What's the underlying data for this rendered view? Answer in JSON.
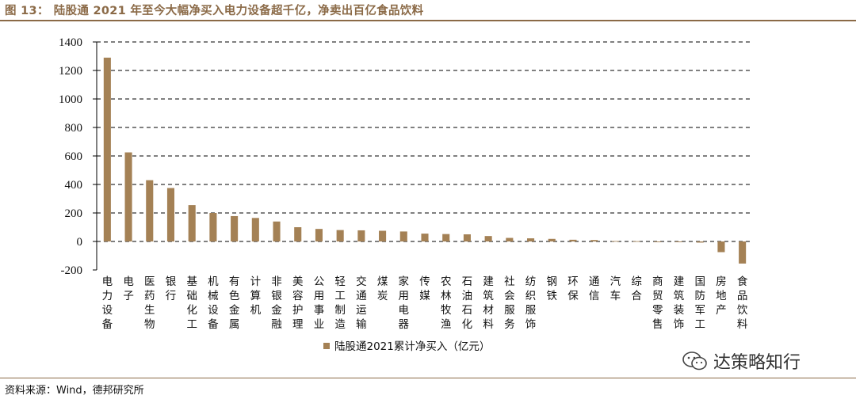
{
  "header": {
    "fig_label": "图 13：",
    "title": "陆股通 2021 年至今大幅净买入电力设备超千亿，净卖出百亿食品饮料"
  },
  "footer": {
    "source": "资料来源：Wind，德邦研究所",
    "watermark": "达策略知行"
  },
  "colors": {
    "bar": "#a48155",
    "accent": "#8b6a47",
    "grid": "#000000"
  },
  "chart_data": {
    "type": "bar",
    "categories": [
      "电力设备",
      "电子",
      "医药生物",
      "银行",
      "基础化工",
      "机械设备",
      "有色金属",
      "计算机",
      "非银金融",
      "美容护理",
      "公用事业",
      "轻工制造",
      "交通运输",
      "煤炭",
      "家用电器",
      "传媒",
      "农林牧渔",
      "石油石化",
      "建筑材料",
      "社会服务",
      "纺织服饰",
      "钢铁",
      "环保",
      "通信",
      "汽车",
      "综合",
      "商贸零售",
      "建筑装饰",
      "国防军工",
      "房地产",
      "食品饮料"
    ],
    "series": [
      {
        "name": "陆股通2021累计净买入（亿元）",
        "values": [
          1290,
          625,
          430,
          375,
          255,
          200,
          178,
          165,
          140,
          100,
          88,
          80,
          78,
          75,
          70,
          55,
          52,
          50,
          38,
          25,
          22,
          18,
          12,
          10,
          3,
          2,
          -5,
          -5,
          -8,
          -75,
          -155
        ]
      }
    ],
    "ylim": [
      -200,
      1400
    ],
    "yticks": [
      -200,
      0,
      200,
      400,
      600,
      800,
      1000,
      1200,
      1400
    ],
    "grid": true,
    "legend_position": "bottom-center"
  }
}
